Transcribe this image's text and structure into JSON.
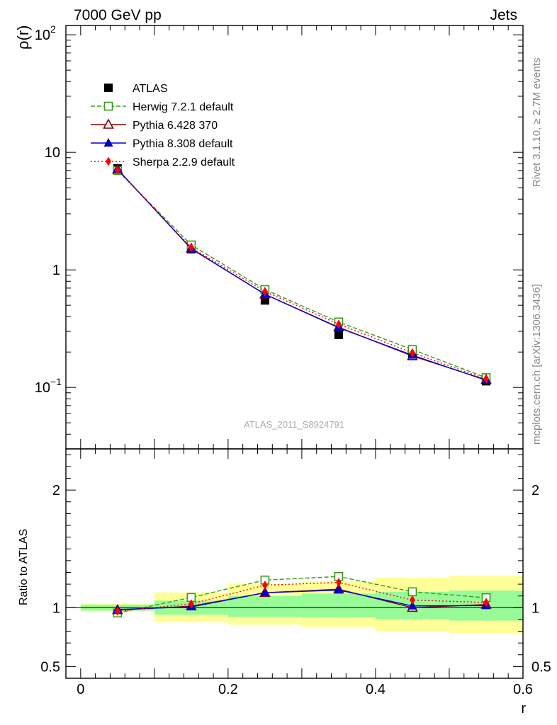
{
  "header": {
    "left": "7000 GeV pp",
    "right": "Jets"
  },
  "side_labels": {
    "rivet": "Rivet 3.1.10, ≥ 2.7M events",
    "mcplots": "mcplots.cern.ch [arXiv:1306.3436]"
  },
  "analysis_id": "ATLAS_2011_S8924791",
  "chart_data": [
    {
      "type": "line",
      "panel": "main",
      "ylabel": "ρ(r)",
      "yscale": "log",
      "ylim": [
        0.03,
        120
      ],
      "xlim": [
        -0.02,
        0.6
      ],
      "yticks": [
        {
          "v": 0.1,
          "base": "10",
          "exp": "−1"
        },
        {
          "v": 1,
          "base": "1",
          "exp": ""
        },
        {
          "v": 10,
          "base": "10",
          "exp": ""
        },
        {
          "v": 100,
          "base": "10",
          "exp": "2"
        }
      ],
      "x": [
        0.05,
        0.15,
        0.25,
        0.35,
        0.45,
        0.55
      ],
      "legend_position": "top-left",
      "series": [
        {
          "name": "ATLAS",
          "color": "#000000",
          "marker": "filled-square",
          "line": "none",
          "values": [
            7.3,
            1.5,
            0.55,
            0.28,
            0.185,
            0.113
          ]
        },
        {
          "name": "Herwig 7.2.1 default",
          "color": "#3a9a1a",
          "marker": "open-square",
          "line": "dashed",
          "values": [
            7.0,
            1.63,
            0.68,
            0.36,
            0.21,
            0.121
          ]
        },
        {
          "name": "Pythia 6.428 370",
          "color": "#8b0000",
          "marker": "open-triangle",
          "line": "solid",
          "values": [
            7.15,
            1.52,
            0.62,
            0.325,
            0.185,
            0.116
          ]
        },
        {
          "name": "Pythia 8.308 default",
          "color": "#0000cc",
          "marker": "filled-triangle",
          "line": "solid",
          "values": [
            7.2,
            1.51,
            0.62,
            0.322,
            0.188,
            0.115
          ]
        },
        {
          "name": "Sherpa 2.2.9 default",
          "color": "#ff0000",
          "marker": "filled-diamond",
          "line": "dotted",
          "values": [
            7.1,
            1.55,
            0.655,
            0.345,
            0.197,
            0.118
          ]
        }
      ]
    },
    {
      "type": "line",
      "panel": "ratio",
      "xlabel": "r",
      "ylabel": "Ratio to ATLAS",
      "ylim": [
        0.4,
        2.35
      ],
      "xlim": [
        -0.02,
        0.6
      ],
      "xticks": [
        0,
        0.2,
        0.4,
        0.6
      ],
      "xtick_labels": [
        "0",
        "0.2",
        "0.4",
        "0.6"
      ],
      "yticks": [
        0.5,
        1,
        2
      ],
      "ytick_labels": [
        "0.5",
        "1",
        "2"
      ],
      "x": [
        0.05,
        0.15,
        0.25,
        0.35,
        0.45,
        0.55
      ],
      "bands": {
        "bins": [
          [
            0,
            0.1
          ],
          [
            0.1,
            0.2
          ],
          [
            0.2,
            0.3
          ],
          [
            0.3,
            0.4
          ],
          [
            0.4,
            0.5
          ],
          [
            0.5,
            0.6
          ]
        ],
        "stat_color": "#98fb98",
        "syst_color": "#ffff99",
        "stat": [
          [
            0.975,
            1.025
          ],
          [
            0.94,
            1.06
          ],
          [
            0.92,
            1.1
          ],
          [
            0.915,
            1.12
          ],
          [
            0.9,
            1.135
          ],
          [
            0.89,
            1.145
          ]
        ],
        "total": [
          [
            0.965,
            1.035
          ],
          [
            0.875,
            1.13
          ],
          [
            0.855,
            1.2
          ],
          [
            0.835,
            1.225
          ],
          [
            0.8,
            1.255
          ],
          [
            0.78,
            1.27
          ]
        ]
      },
      "series": [
        {
          "name": "Herwig 7.2.1 default",
          "color": "#3a9a1a",
          "marker": "open-square",
          "line": "dashed",
          "values": [
            0.955,
            1.087,
            1.235,
            1.265,
            1.135,
            1.085
          ]
        },
        {
          "name": "Pythia 6.428 370",
          "color": "#8b0000",
          "marker": "open-triangle",
          "line": "solid",
          "values": [
            0.98,
            1.013,
            1.127,
            1.157,
            1.0,
            1.027
          ]
        },
        {
          "name": "Pythia 8.308 default",
          "color": "#0000cc",
          "marker": "filled-triangle",
          "line": "solid",
          "values": [
            0.985,
            1.007,
            1.127,
            1.15,
            1.015,
            1.018
          ]
        },
        {
          "name": "Sherpa 2.2.9 default",
          "color": "#ff0000",
          "marker": "filled-diamond",
          "line": "dotted",
          "values": [
            0.97,
            1.033,
            1.191,
            1.215,
            1.065,
            1.044
          ]
        }
      ]
    }
  ]
}
